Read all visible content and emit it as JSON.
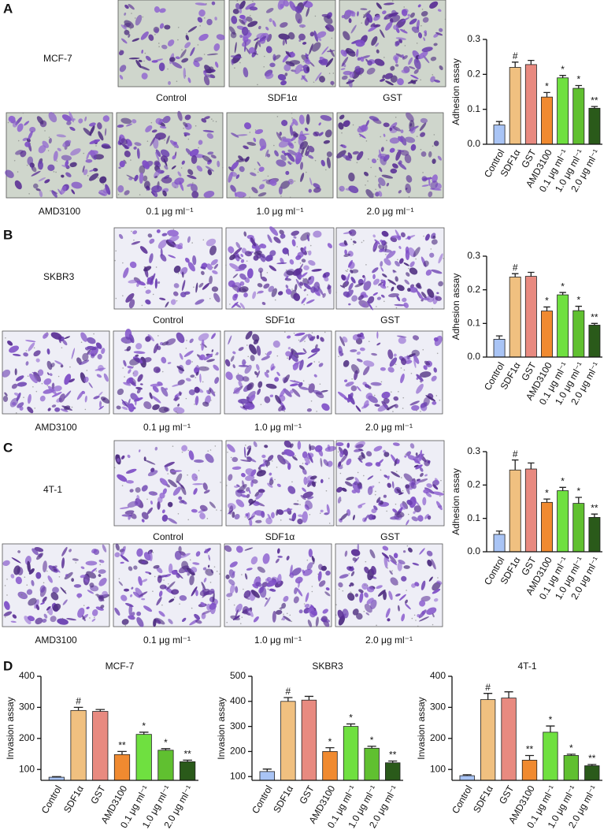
{
  "panels": [
    {
      "letter": "A",
      "cell_line": "MCF-7",
      "captions": [
        "Control",
        "SDF1α",
        "GST",
        "AMD3100",
        "0.1 μg ml⁻¹",
        "1.0 μg ml⁻¹",
        "2.0 μg ml⁻¹"
      ]
    },
    {
      "letter": "B",
      "cell_line": "SKBR3",
      "captions": [
        "Control",
        "SDF1α",
        "GST",
        "AMD3100",
        "0.1 μg ml⁻¹",
        "1.0 μg ml⁻¹",
        "2.0 μg ml⁻¹"
      ]
    },
    {
      "letter": "C",
      "cell_line": "4T-1",
      "captions": [
        "Control",
        "SDF1α",
        "GST",
        "AMD3100",
        "0.1 μg ml⁻¹",
        "1.0 μg ml⁻¹",
        "2.0 μg ml⁻¹"
      ]
    },
    {
      "letter": "D"
    }
  ],
  "chart_data": [
    {
      "type": "bar",
      "ylabel": "Adhesion assay",
      "categories": [
        "Control",
        "SDF1α",
        "GST",
        "AMD3100",
        "0.1 μg ml⁻¹",
        "1.0 μg ml⁻¹",
        "2.0 μg ml⁻¹"
      ],
      "colors": [
        "#a9c4f5",
        "#f0c080",
        "#e88a80",
        "#f08a30",
        "#6fe040",
        "#60c030",
        "#2a5a1a"
      ],
      "values": [
        0.055,
        0.22,
        0.228,
        0.135,
        0.19,
        0.16,
        0.103
      ],
      "errors": [
        0.01,
        0.015,
        0.012,
        0.013,
        0.007,
        0.008,
        0.005
      ],
      "annotations": [
        null,
        "#",
        null,
        "*",
        "*",
        "*",
        "**"
      ],
      "ylim": [
        0,
        0.3
      ],
      "yticks": [
        {
          "value": 0,
          "label": "0.0"
        },
        0.1,
        0.2,
        0.3
      ]
    },
    {
      "type": "bar",
      "ylabel": "Adhesion assay",
      "categories": [
        "Control",
        "SDF1α",
        "GST",
        "AMD3100",
        "0.1 μg ml⁻¹",
        "1.0 μg ml⁻¹",
        "2.0 μg ml⁻¹"
      ],
      "colors": [
        "#a9c4f5",
        "#f0c080",
        "#e88a80",
        "#f08a30",
        "#6fe040",
        "#60c030",
        "#2a5a1a"
      ],
      "values": [
        0.053,
        0.238,
        0.24,
        0.137,
        0.185,
        0.138,
        0.095
      ],
      "errors": [
        0.01,
        0.01,
        0.012,
        0.012,
        0.007,
        0.013,
        0.005
      ],
      "annotations": [
        null,
        "#",
        null,
        "*",
        "*",
        "*",
        "**"
      ],
      "ylim": [
        0,
        0.3
      ],
      "yticks": [
        {
          "value": 0,
          "label": "0.0"
        },
        0.1,
        0.2,
        0.3
      ]
    },
    {
      "type": "bar",
      "ylabel": "Adhesion assay",
      "categories": [
        "Control",
        "SDF1α",
        "GST",
        "AMD3100",
        "0.1 μg ml⁻¹",
        "1.0 μg ml⁻¹",
        "2.0 μg ml⁻¹"
      ],
      "colors": [
        "#a9c4f5",
        "#f0c080",
        "#e88a80",
        "#f08a30",
        "#6fe040",
        "#60c030",
        "#2a5a1a"
      ],
      "values": [
        0.052,
        0.245,
        0.248,
        0.148,
        0.183,
        0.145,
        0.103
      ],
      "errors": [
        0.01,
        0.03,
        0.018,
        0.01,
        0.01,
        0.018,
        0.01
      ],
      "annotations": [
        null,
        "#",
        null,
        "*",
        "*",
        "*",
        "**"
      ],
      "ylim": [
        0,
        0.3
      ],
      "yticks": [
        {
          "value": 0,
          "label": "0.0"
        },
        0.1,
        0.2,
        0.3
      ]
    },
    {
      "type": "bar",
      "title": "MCF-7",
      "ylabel": "Invasion assay",
      "categories": [
        "Control",
        "SDF1α",
        "GST",
        "AMD3100",
        "0.1 μg ml⁻¹",
        "1.0 μg ml⁻¹",
        "2.0 μg ml⁻¹"
      ],
      "colors": [
        "#a9c4f5",
        "#f0c080",
        "#e88a80",
        "#f08a30",
        "#6fe040",
        "#60c030",
        "#2a5a1a"
      ],
      "values": [
        75,
        290,
        287,
        148,
        213,
        162,
        125
      ],
      "errors": [
        2,
        10,
        6,
        10,
        7,
        5,
        5
      ],
      "annotations": [
        null,
        "#",
        null,
        "**",
        "*",
        "*",
        "**"
      ],
      "ylim": [
        65,
        400
      ],
      "yticks": [
        100,
        200,
        300,
        400
      ]
    },
    {
      "type": "bar",
      "title": "SKBR3",
      "ylabel": "Invasion assay",
      "categories": [
        "Control",
        "SDF1α",
        "GST",
        "AMD3100",
        "0.1 μg ml⁻¹",
        "1.0 μg ml⁻¹",
        "2.0 μg ml⁻¹"
      ],
      "colors": [
        "#a9c4f5",
        "#f0c080",
        "#e88a80",
        "#f08a30",
        "#6fe040",
        "#60c030",
        "#2a5a1a"
      ],
      "values": [
        120,
        400,
        405,
        200,
        300,
        213,
        155
      ],
      "errors": [
        10,
        15,
        15,
        15,
        10,
        8,
        7
      ],
      "annotations": [
        null,
        "#",
        null,
        "*",
        "*",
        "*",
        "**"
      ],
      "ylim": [
        85,
        500
      ],
      "yticks": [
        100,
        200,
        300,
        400,
        500
      ]
    },
    {
      "type": "bar",
      "title": "4T-1",
      "ylabel": "Invasion assay",
      "categories": [
        "Control",
        "SDF1α",
        "GST",
        "AMD3100",
        "0.1 μg ml⁻¹",
        "1.0 μg ml⁻¹",
        "2.0 μg ml⁻¹"
      ],
      "colors": [
        "#a9c4f5",
        "#f0c080",
        "#e88a80",
        "#f08a30",
        "#6fe040",
        "#60c030",
        "#2a5a1a"
      ],
      "values": [
        80,
        325,
        330,
        130,
        220,
        145,
        112
      ],
      "errors": [
        3,
        20,
        20,
        15,
        20,
        4,
        4
      ],
      "annotations": [
        null,
        "#",
        null,
        "**",
        "*",
        "*",
        "**"
      ],
      "ylim": [
        65,
        400
      ],
      "yticks": [
        100,
        200,
        300,
        400
      ]
    }
  ]
}
